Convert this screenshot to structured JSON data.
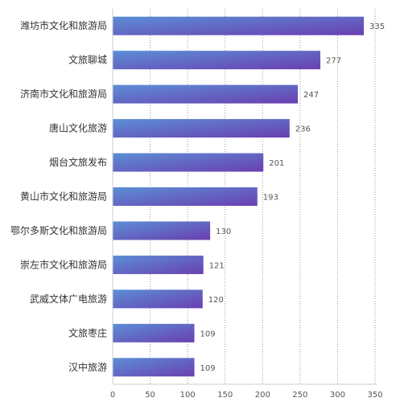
{
  "chart_data": {
    "type": "bar",
    "orientation": "horizontal",
    "categories": [
      "潍坊市文化和旅游局",
      "文旅聊城",
      "济南市文化和旅游局",
      "唐山文化旅游",
      "烟台文旅发布",
      "黄山市文化和旅游局",
      "鄂尔多斯文化和旅游局",
      "崇左市文化和旅游局",
      "武威文体广电旅游",
      "文旅枣庄",
      "汉中旅游"
    ],
    "values": [
      335,
      277,
      247,
      236,
      201,
      193,
      130,
      121,
      120,
      109,
      109
    ],
    "xlim": [
      0,
      350
    ],
    "xticks": [
      "0",
      "50",
      "100",
      "150",
      "200",
      "250",
      "300",
      "350"
    ],
    "grid": "vertical-dotted",
    "colors": {
      "bar_start": "#5b8fd6",
      "bar_end": "#6a3fb0",
      "grid": "#999999",
      "axis": "#cccccc"
    }
  }
}
